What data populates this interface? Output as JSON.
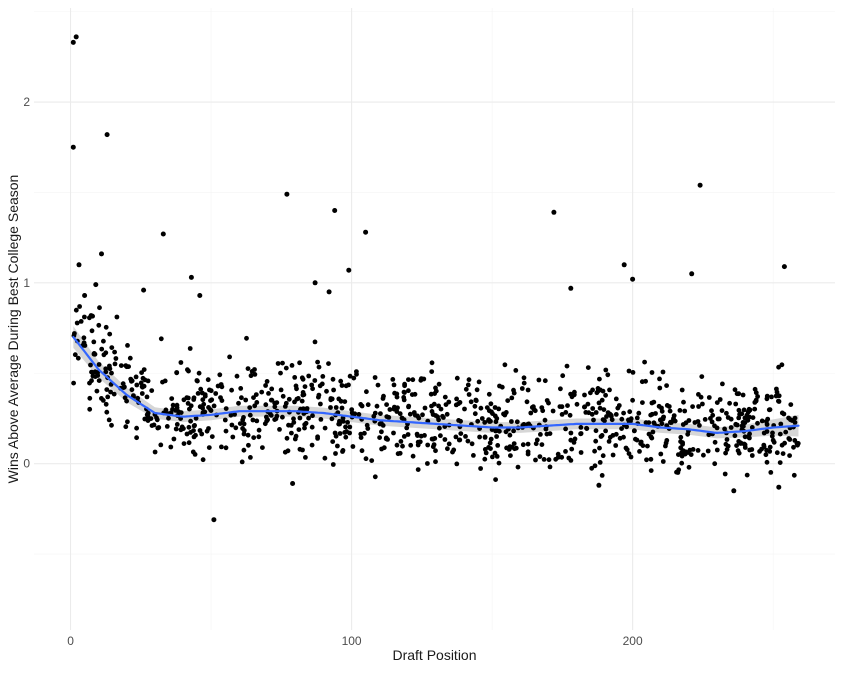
{
  "chart_data": {
    "type": "scatter",
    "title": "",
    "xlabel": "Draft Position",
    "ylabel": "Wins Above Average During Best College Season",
    "xlim": [
      -13,
      272
    ],
    "ylim": [
      -0.92,
      2.52
    ],
    "x_ticks": [
      0,
      100,
      200
    ],
    "y_ticks": [
      0,
      1,
      2
    ],
    "x_tick_labels": [
      "0",
      "100",
      "200"
    ],
    "y_tick_labels": [
      "0",
      "1",
      "2"
    ],
    "grid": true,
    "point_color": "#000000",
    "smooth_color": "#3366ff",
    "band_color": "#c8c8c8",
    "notable_points": [
      {
        "x": 1,
        "y": 2.33
      },
      {
        "x": 2,
        "y": 2.36
      },
      {
        "x": 1,
        "y": 1.75
      },
      {
        "x": 13,
        "y": 1.82
      },
      {
        "x": 77,
        "y": 1.49
      },
      {
        "x": 94,
        "y": 1.4
      },
      {
        "x": 172,
        "y": 1.39
      },
      {
        "x": 224,
        "y": 1.54
      },
      {
        "x": 105,
        "y": 1.28
      },
      {
        "x": 33,
        "y": 1.27
      },
      {
        "x": 11,
        "y": 1.16
      },
      {
        "x": 3,
        "y": 1.1
      },
      {
        "x": 99,
        "y": 1.07
      },
      {
        "x": 197,
        "y": 1.1
      },
      {
        "x": 254,
        "y": 1.09
      },
      {
        "x": 221,
        "y": 1.05
      },
      {
        "x": 43,
        "y": 1.03
      },
      {
        "x": 200,
        "y": 1.02
      },
      {
        "x": 87,
        "y": 1.0
      },
      {
        "x": 9,
        "y": 0.99
      },
      {
        "x": 178,
        "y": 0.97
      },
      {
        "x": 26,
        "y": 0.96
      },
      {
        "x": 92,
        "y": 0.95
      },
      {
        "x": 46,
        "y": 0.93
      },
      {
        "x": 5,
        "y": 0.93
      },
      {
        "x": 51,
        "y": -0.31
      },
      {
        "x": 236,
        "y": -0.15
      },
      {
        "x": 79,
        "y": -0.11
      },
      {
        "x": 188,
        "y": -0.12
      },
      {
        "x": 252,
        "y": -0.13
      }
    ],
    "smooth": {
      "x": [
        1,
        10,
        20,
        30,
        40,
        50,
        60,
        70,
        80,
        90,
        100,
        110,
        120,
        130,
        140,
        150,
        160,
        170,
        180,
        190,
        200,
        210,
        220,
        230,
        240,
        250,
        259
      ],
      "y": [
        0.7,
        0.52,
        0.38,
        0.28,
        0.26,
        0.27,
        0.29,
        0.29,
        0.29,
        0.28,
        0.26,
        0.24,
        0.23,
        0.22,
        0.21,
        0.2,
        0.2,
        0.21,
        0.22,
        0.22,
        0.22,
        0.2,
        0.19,
        0.17,
        0.18,
        0.2,
        0.21
      ],
      "se": [
        0.06,
        0.045,
        0.04,
        0.032,
        0.03,
        0.03,
        0.03,
        0.03,
        0.03,
        0.03,
        0.03,
        0.03,
        0.03,
        0.03,
        0.03,
        0.03,
        0.03,
        0.03,
        0.03,
        0.03,
        0.03,
        0.03,
        0.03,
        0.03,
        0.035,
        0.045,
        0.06
      ]
    },
    "bulk_points": {
      "x_range": [
        1,
        259
      ],
      "count": 1050,
      "residual_sd": 0.13,
      "seed": 7
    }
  }
}
